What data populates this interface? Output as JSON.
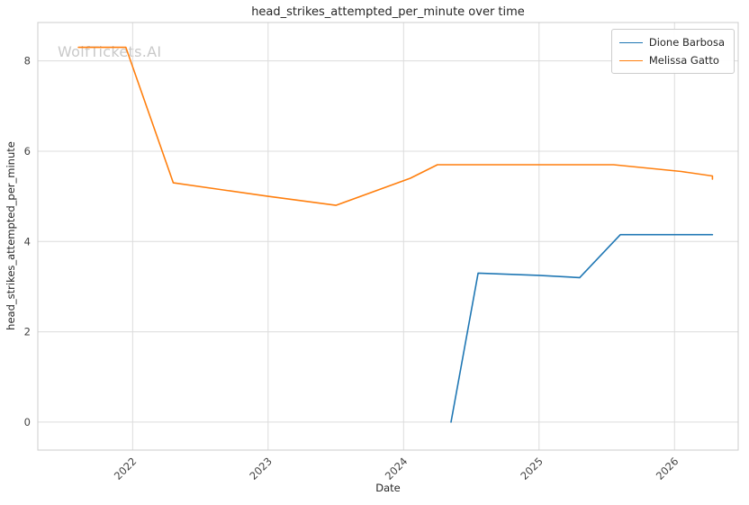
{
  "watermark": "WolfTickets.AI",
  "title": "head_strikes_attempted_per_minute over time",
  "xlabel": "Date",
  "ylabel": "head_strikes_attempted_per_minute",
  "legend": [
    {
      "label": "Dione Barbosa",
      "color": "#1f77b4"
    },
    {
      "label": "Melissa Gatto",
      "color": "#ff7f0e"
    }
  ],
  "chart_data": {
    "type": "line",
    "title": "head_strikes_attempted_per_minute over time",
    "xlabel": "Date",
    "ylabel": "head_strikes_attempted_per_minute",
    "grid": true,
    "legend_position": "upper right",
    "xlim": [
      2021.3,
      2026.47
    ],
    "ylim": [
      -0.62,
      8.85
    ],
    "x_ticks": [
      2022,
      2023,
      2024,
      2025,
      2026
    ],
    "y_ticks": [
      0,
      2,
      4,
      6,
      8
    ],
    "series": [
      {
        "name": "Dione Barbosa",
        "color": "#1f77b4",
        "x": [
          2024.35,
          2024.55,
          2025.0,
          2025.3,
          2025.6,
          2026.28
        ],
        "y": [
          0.0,
          3.3,
          3.25,
          3.2,
          4.15,
          4.15
        ]
      },
      {
        "name": "Melissa Gatto",
        "color": "#ff7f0e",
        "x": [
          2021.6,
          2021.95,
          2022.3,
          2023.0,
          2023.5,
          2024.05,
          2024.25,
          2025.55,
          2026.05,
          2026.28,
          2026.28
        ],
        "y": [
          8.3,
          8.3,
          5.3,
          5.0,
          4.8,
          5.4,
          5.7,
          5.7,
          5.55,
          5.45,
          5.38
        ]
      }
    ]
  }
}
